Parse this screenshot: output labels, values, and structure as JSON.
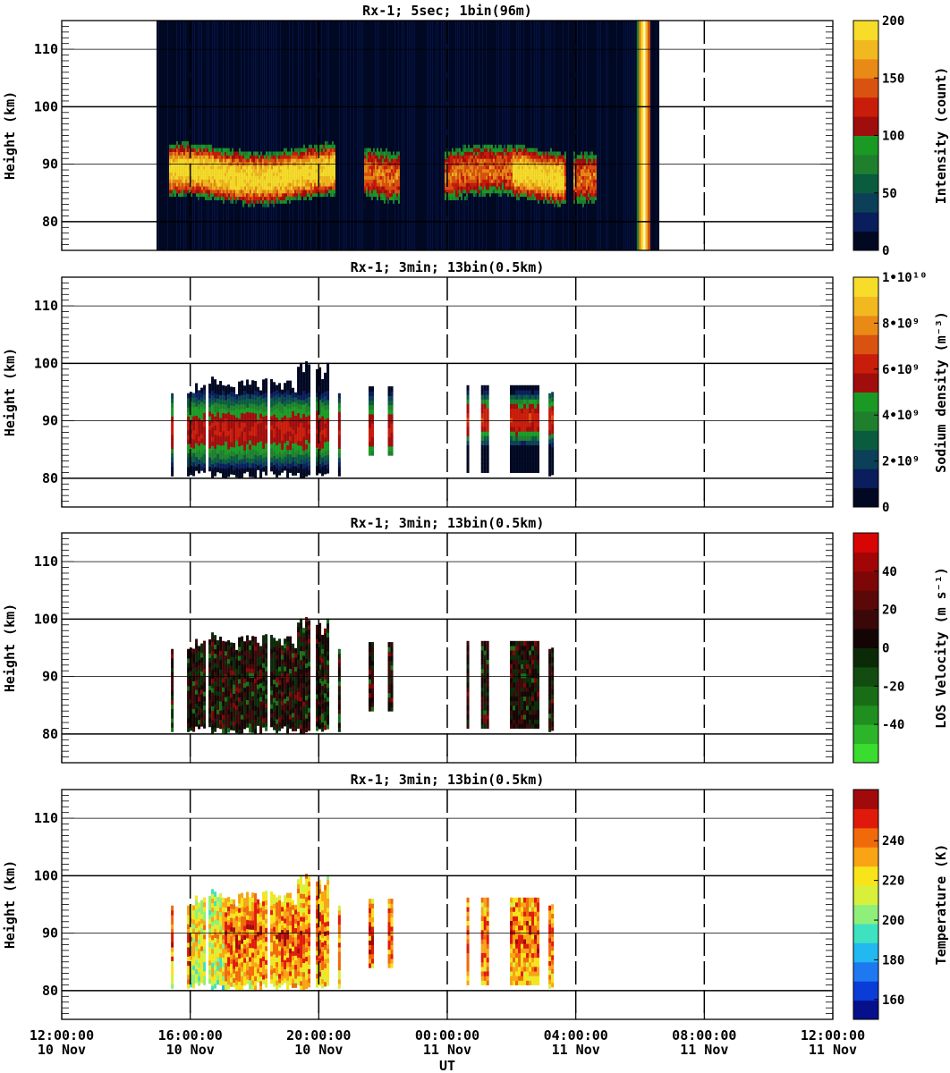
{
  "figure": {
    "xlabel": "UT",
    "x_ticks": [
      {
        "time": "12:00:00",
        "date": "10 Nov"
      },
      {
        "time": "16:00:00",
        "date": "10 Nov"
      },
      {
        "time": "20:00:00",
        "date": "10 Nov"
      },
      {
        "time": "00:00:00",
        "date": "11 Nov"
      },
      {
        "time": "04:00:00",
        "date": "11 Nov"
      },
      {
        "time": "08:00:00",
        "date": "11 Nov"
      },
      {
        "time": "12:00:00",
        "date": "11 Nov"
      }
    ]
  },
  "chart_data": [
    {
      "type": "heatmap",
      "title": "Rx-1;  5sec; 1bin(96m)",
      "ylabel": "Height (km)",
      "colorbar_label": "Intensity (count)",
      "colorbar_ticks": [
        "0",
        "50",
        "100",
        "150",
        "200"
      ],
      "colorbar_colors": [
        "#000822",
        "#0a1d5c",
        "#0c3f58",
        "#0a5c3e",
        "#1f7f2d",
        "#1a9a25",
        "#a00d0d",
        "#c81d0a",
        "#da5210",
        "#e98a16",
        "#f2b820",
        "#f7dd2a"
      ],
      "x_range_hours": [
        12,
        36
      ],
      "y_range_km": [
        75,
        115
      ],
      "y_ticks": [
        80,
        90,
        100,
        110
      ],
      "data_start_hour": 14.95,
      "data_end_hour": 30.6,
      "layer_peak_km": 88,
      "layer_top_km": 96,
      "layer_bottom_km": 80,
      "saturated_band_hours": [
        29.9,
        30.3
      ]
    },
    {
      "type": "heatmap",
      "title": "Rx-1; 3min; 13bin(0.5km)",
      "ylabel": "Height (km)",
      "colorbar_label": "Sodium density (m⁻³)",
      "colorbar_ticks": [
        "0",
        "2•10⁹",
        "4•10⁹",
        "6•10⁹",
        "8•10⁹",
        "1•10¹⁰"
      ],
      "colorbar_colors": [
        "#000822",
        "#0a1d5c",
        "#0c3f58",
        "#0a5c3e",
        "#1f7f2d",
        "#1a9a25",
        "#a00d0d",
        "#c81d0a",
        "#da5210",
        "#e98a16",
        "#f2b820",
        "#f7dd2a"
      ],
      "x_range_hours": [
        12,
        36
      ],
      "y_range_km": [
        75,
        115
      ],
      "y_ticks": [
        80,
        90,
        100,
        110
      ],
      "segments_hours": [
        [
          15.4,
          15.55
        ],
        [
          15.9,
          20.45
        ],
        [
          20.6,
          20.7
        ],
        [
          21.55,
          21.75
        ],
        [
          22.15,
          22.4
        ],
        [
          24.6,
          24.7
        ],
        [
          25.05,
          25.35
        ],
        [
          25.95,
          26.95
        ],
        [
          27.15,
          27.4
        ]
      ]
    },
    {
      "type": "heatmap",
      "title": "Rx-1; 3min; 13bin(0.5km)",
      "ylabel": "Height (km)",
      "colorbar_label": "LOS Velocity (m s⁻¹)",
      "colorbar_ticks": [
        "-40",
        "-20",
        "0",
        "20",
        "40"
      ],
      "colorbar_colors": [
        "#3adc30",
        "#2cb528",
        "#1f8f1f",
        "#1a6d17",
        "#134c10",
        "#0a2a08",
        "#140505",
        "#3a0808",
        "#5a0808",
        "#7d0606",
        "#a20505",
        "#d80505"
      ],
      "x_range_hours": [
        12,
        36
      ],
      "y_range_km": [
        75,
        115
      ],
      "y_ticks": [
        80,
        90,
        100,
        110
      ],
      "segments_hours": [
        [
          15.4,
          15.55
        ],
        [
          15.9,
          20.45
        ],
        [
          20.6,
          20.7
        ],
        [
          21.55,
          21.75
        ],
        [
          22.15,
          22.4
        ],
        [
          24.6,
          24.7
        ],
        [
          25.05,
          25.35
        ],
        [
          25.95,
          26.95
        ],
        [
          27.15,
          27.4
        ]
      ]
    },
    {
      "type": "heatmap",
      "title": "Rx-1; 3min; 13bin(0.5km)",
      "ylabel": "Height (km)",
      "colorbar_label": "Temperature (K)",
      "colorbar_ticks": [
        "160",
        "180",
        "200",
        "220",
        "240"
      ],
      "colorbar_colors": [
        "#05108a",
        "#0a3cd8",
        "#1e78f0",
        "#22b8f0",
        "#3ee2c0",
        "#8ef07a",
        "#d8f03a",
        "#f8e41a",
        "#f8a414",
        "#f06a0c",
        "#e01a0a",
        "#a00a0a"
      ],
      "x_range_hours": [
        12,
        36
      ],
      "y_range_km": [
        75,
        115
      ],
      "y_ticks": [
        80,
        90,
        100,
        110
      ],
      "segments_hours": [
        [
          15.4,
          15.55
        ],
        [
          15.9,
          20.45
        ],
        [
          20.6,
          20.7
        ],
        [
          21.55,
          21.75
        ],
        [
          22.15,
          22.4
        ],
        [
          24.6,
          24.7
        ],
        [
          25.05,
          25.35
        ],
        [
          25.95,
          26.95
        ],
        [
          27.15,
          27.4
        ]
      ]
    }
  ]
}
